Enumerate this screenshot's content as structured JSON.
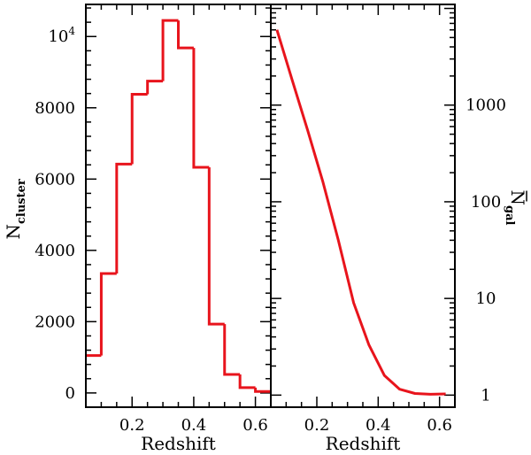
{
  "chart_data": [
    {
      "type": "bar",
      "subtype": "step-histogram",
      "xlabel": "Redshift",
      "ylabel": "N",
      "ylabel_sub": "cluster",
      "xlim": [
        0.05,
        0.65
      ],
      "ylim": [
        -400,
        10900
      ],
      "grid": false,
      "bin_edges": [
        0.05,
        0.1,
        0.15,
        0.2,
        0.25,
        0.3,
        0.35,
        0.4,
        0.45,
        0.5,
        0.55,
        0.6,
        0.65
      ],
      "values": [
        1050,
        3350,
        6420,
        8380,
        8750,
        10450,
        9680,
        6330,
        1930,
        520,
        150,
        40
      ],
      "x_ticks": [
        {
          "v": 0.2,
          "label": "0.2"
        },
        {
          "v": 0.4,
          "label": "0.4"
        },
        {
          "v": 0.6,
          "label": "0.6"
        }
      ],
      "y_ticks": [
        {
          "v": 0,
          "label": "0"
        },
        {
          "v": 2000,
          "label": "2000"
        },
        {
          "v": 4000,
          "label": "4000"
        },
        {
          "v": 6000,
          "label": "6000"
        },
        {
          "v": 8000,
          "label": "8000"
        }
      ],
      "y_top_tick": {
        "v": 10000,
        "base": "10",
        "exp": "4"
      },
      "color": "#e8141c"
    },
    {
      "type": "line",
      "xlabel": "Redshift",
      "ylabel": "N",
      "ylabel_sub": "gal",
      "xlim": [
        0.05,
        0.65
      ],
      "ylim": [
        0.75,
        11000
      ],
      "yscale": "log",
      "grid": false,
      "x": [
        0.07,
        0.12,
        0.17,
        0.22,
        0.27,
        0.32,
        0.37,
        0.42,
        0.47,
        0.52,
        0.57,
        0.62
      ],
      "y": [
        6000,
        1800,
        550,
        160,
        40,
        9,
        3.3,
        1.6,
        1.15,
        1.04,
        1.02,
        1.03
      ],
      "x_ticks": [
        {
          "v": 0.2,
          "label": "0.2"
        },
        {
          "v": 0.4,
          "label": "0.4"
        },
        {
          "v": 0.6,
          "label": "0.6"
        }
      ],
      "y_ticks": [
        {
          "v": 1,
          "label": "1"
        },
        {
          "v": 10,
          "label": "10"
        },
        {
          "v": 100,
          "label": "100"
        },
        {
          "v": 1000,
          "label": "1000"
        }
      ],
      "color": "#e8141c"
    }
  ]
}
